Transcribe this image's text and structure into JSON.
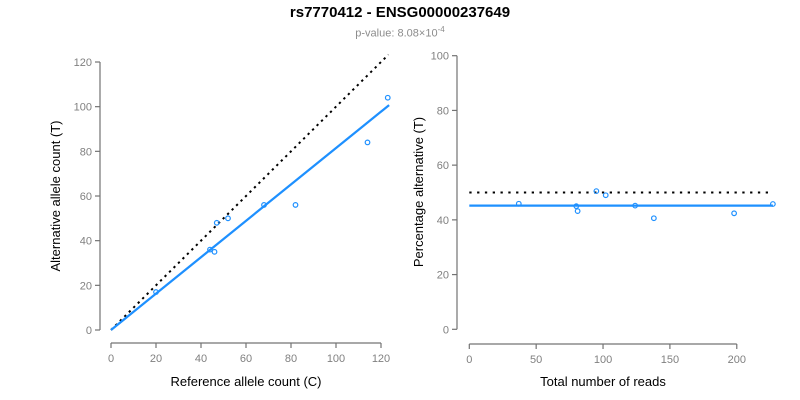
{
  "header": {
    "title": "rs7770412 - ENSG00000237649",
    "subtitle": {
      "prefix": "p-value: ",
      "mantissa": "8.08",
      "times": "×10",
      "exponent": "-4"
    }
  },
  "colors": {
    "accent_blue": "#1E90FF",
    "axis_gray": "#737373",
    "tick_label_gray": "#808080",
    "subtitle_gray": "#8C8C8C",
    "black": "#000000"
  },
  "chart_data": [
    {
      "type": "scatter",
      "title": "",
      "xlabel": "Reference allele count (C)",
      "ylabel": "Alternative allele count (T)",
      "xticks": [
        0,
        20,
        40,
        60,
        80,
        100,
        120
      ],
      "yticks": [
        0,
        20,
        40,
        60,
        80,
        100,
        120
      ],
      "xlim": [
        0,
        124
      ],
      "ylim": [
        0,
        124
      ],
      "grid": false,
      "legend": "none",
      "point_color": "#1E90FF",
      "points": [
        [
          20,
          17
        ],
        [
          44,
          36
        ],
        [
          46,
          35
        ],
        [
          47,
          48
        ],
        [
          52,
          50
        ],
        [
          68,
          56
        ],
        [
          82,
          56
        ],
        [
          114,
          84
        ],
        [
          123,
          104
        ]
      ],
      "lines": [
        {
          "name": "identity-line",
          "style": "dotted",
          "color": "#000000",
          "from": [
            0,
            0
          ],
          "to": [
            123.3,
            123.3
          ]
        },
        {
          "name": "regression-line",
          "style": "solid",
          "color": "#1E90FF",
          "from": [
            0,
            0
          ],
          "to": [
            123.6,
            100.7
          ]
        }
      ]
    },
    {
      "type": "scatter",
      "title": "",
      "xlabel": "Total number of reads",
      "ylabel": "Percentage alternative (T)",
      "xticks": [
        0,
        50,
        100,
        150,
        200
      ],
      "yticks": [
        0,
        20,
        40,
        60,
        80,
        100
      ],
      "xlim": [
        0,
        228
      ],
      "ylim": [
        0,
        100
      ],
      "grid": false,
      "legend": "none",
      "point_color": "#1E90FF",
      "points": [
        [
          37,
          45.9
        ],
        [
          80,
          45.0
        ],
        [
          81,
          43.2
        ],
        [
          95,
          50.5
        ],
        [
          102,
          49.0
        ],
        [
          124,
          45.2
        ],
        [
          138,
          40.6
        ],
        [
          198,
          42.4
        ],
        [
          227,
          45.8
        ]
      ],
      "lines": [
        {
          "name": "expected-percentage-line",
          "style": "dotted",
          "color": "#000000",
          "from": [
            0,
            50
          ],
          "to": [
            224,
            50
          ]
        },
        {
          "name": "mean-percentage-line",
          "style": "solid",
          "color": "#1E90FF",
          "from": [
            0,
            45.2
          ],
          "to": [
            227,
            45.2
          ]
        }
      ]
    }
  ]
}
